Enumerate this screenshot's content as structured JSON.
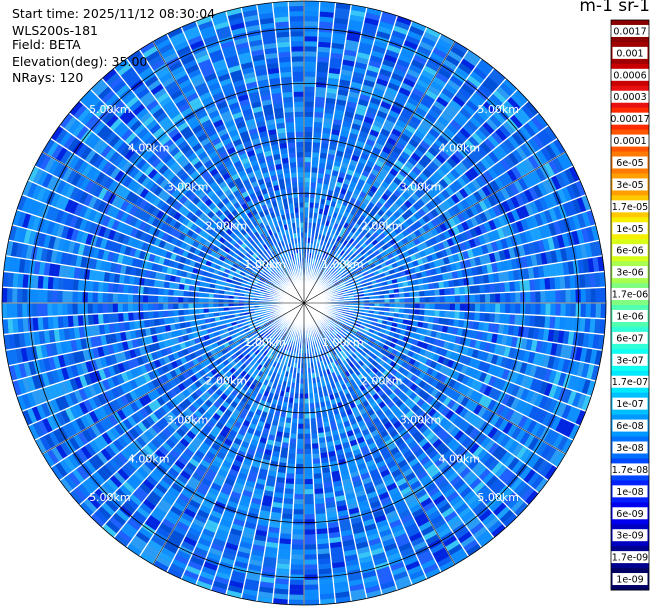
{
  "info": {
    "start_time": "Start time: 2025/11/12 08:30:04",
    "instrument": "WLS200s-181",
    "field": "Field: BETA",
    "elevation": "Elevation(deg): 35.00",
    "nrays": "NRays: 120"
  },
  "colorbar": {
    "title": "m-1 sr-1",
    "ticks": [
      "0.0017",
      "0.001",
      "0.0006",
      "0.0003",
      "0.00017",
      "0.0001",
      "6e-05",
      "3e-05",
      "1.7e-05",
      "1e-05",
      "6e-06",
      "3e-06",
      "1.7e-06",
      "1e-06",
      "6e-07",
      "3e-07",
      "1.7e-07",
      "1e-07",
      "6e-08",
      "3e-08",
      "1.7e-08",
      "1e-08",
      "6e-09",
      "3e-09",
      "1.7e-09",
      "1e-09"
    ],
    "colors": [
      "#8b0000",
      "#a00000",
      "#c80000",
      "#e81010",
      "#ff2a00",
      "#ff5500",
      "#ff7a00",
      "#ffa000",
      "#ffc800",
      "#f6f000",
      "#d8ff1a",
      "#a8ff50",
      "#80ff80",
      "#50ffb0",
      "#30ffd8",
      "#10fff0",
      "#00e8ff",
      "#00c0ff",
      "#0098ff",
      "#0070ff",
      "#0048ff",
      "#0020ff",
      "#0000ee",
      "#0000c0",
      "#00008e",
      "#000066"
    ]
  },
  "chart_data": {
    "type": "heatmap",
    "projection": "polar (plan position indicator)",
    "field": "BETA",
    "elevation_deg": 35.0,
    "n_rays": 120,
    "range_rings_km": [
      1,
      2,
      3,
      4,
      5
    ],
    "ring_labels": [
      "1.00km",
      "2.00km",
      "3.00km",
      "4.00km",
      "5.00km"
    ],
    "max_range_km": 5.5,
    "color_scale": "log",
    "value_range": [
      1e-09,
      0.0017
    ],
    "dominant_value_range": [
      6e-09,
      6e-08
    ]
  }
}
